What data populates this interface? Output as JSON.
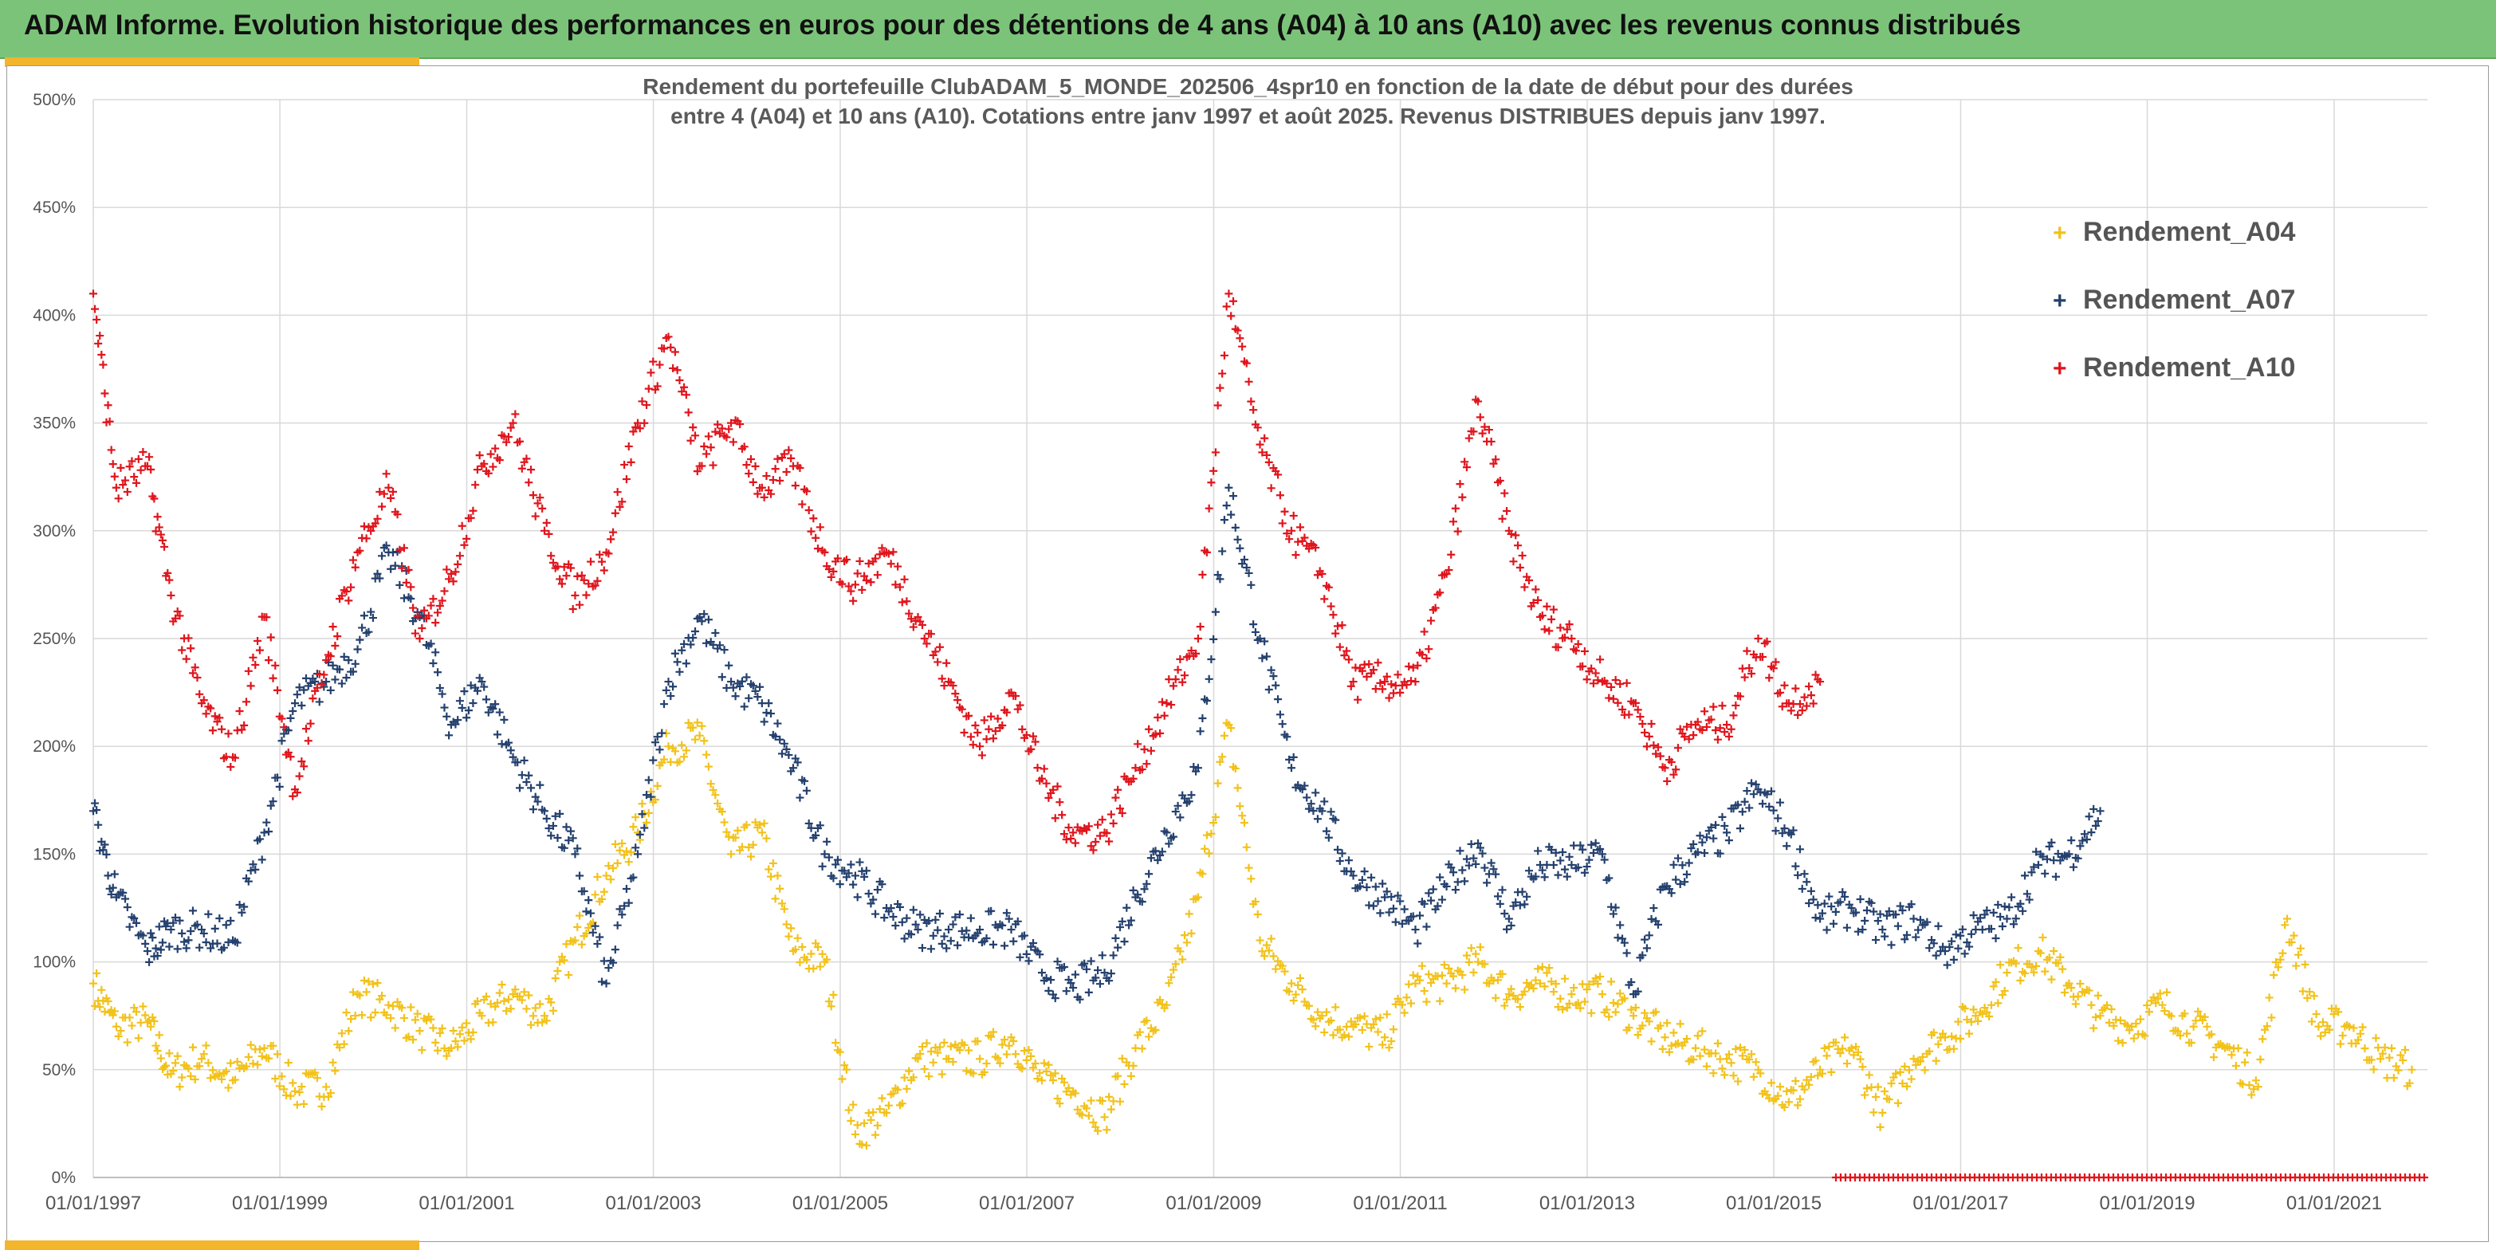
{
  "banner": {
    "title": "ADAM Informe. Evolution historique des performances en euros pour des détentions de 4 ans (A04) à 10 ans (A10) avec les revenus connus distribués"
  },
  "colors": {
    "banner": "#7cc37a",
    "accent": "#f2b52b",
    "A04": "#f2c21a",
    "A07": "#24406e",
    "A10": "#e0151c"
  },
  "chart_data": {
    "type": "scatter",
    "title": "Rendement du portefeuille ClubADAM_5_MONDE_202506_4spr10  en fonction de la date de début pour des durées",
    "title_line2": "entre 4 (A04) et 10 ans (A10). Cotations entre janv 1997 et août 2025. Revenus DISTRIBUES depuis janv 1997.",
    "marker": "+",
    "x_axis": {
      "type": "date",
      "min": "1997-01-01",
      "max": "2022-01-01",
      "tick_labels": [
        "01/01/1997",
        "01/01/1999",
        "01/01/2001",
        "01/01/2003",
        "01/01/2005",
        "01/01/2007",
        "01/01/2009",
        "01/01/2011",
        "01/01/2013",
        "01/01/2015",
        "01/01/2017",
        "01/01/2019",
        "01/01/2021"
      ]
    },
    "y_axis": {
      "min": 0,
      "max": 5,
      "format": "percent",
      "tick_labels": [
        "0%",
        "50%",
        "100%",
        "150%",
        "200%",
        "250%",
        "300%",
        "350%",
        "400%",
        "450%",
        "500%"
      ]
    },
    "grid": true,
    "legend_position": "top-right",
    "series": [
      {
        "name": "Rendement_A04",
        "color": "#f2c21a",
        "x": [
          "1997-01-01",
          "1997-04-01",
          "1997-08-01",
          "1997-11-01",
          "1998-03-01",
          "1998-07-01",
          "1998-11-01",
          "1999-03-01",
          "1999-07-01",
          "1999-11-01",
          "2000-03-01",
          "2000-07-01",
          "2000-11-01",
          "2001-03-01",
          "2001-07-01",
          "2001-11-01",
          "2002-03-01",
          "2002-07-01",
          "2002-11-01",
          "2003-03-01",
          "2003-07-01",
          "2003-11-01",
          "2004-03-01",
          "2004-07-01",
          "2004-11-01",
          "2005-03-01",
          "2005-07-01",
          "2005-11-01",
          "2006-03-01",
          "2006-07-01",
          "2006-11-01",
          "2007-03-01",
          "2007-07-01",
          "2007-11-01",
          "2008-03-01",
          "2008-07-01",
          "2008-11-01",
          "2009-03-01",
          "2009-07-01",
          "2009-11-01",
          "2010-03-01",
          "2010-07-01",
          "2010-11-01",
          "2011-03-01",
          "2011-07-01",
          "2011-11-01",
          "2012-03-01",
          "2012-07-01",
          "2012-11-01",
          "2013-03-01",
          "2013-07-01",
          "2013-11-01",
          "2014-03-01",
          "2014-07-01",
          "2014-11-01",
          "2015-03-01",
          "2015-07-01",
          "2015-11-01",
          "2016-03-01",
          "2016-07-01",
          "2016-11-01",
          "2017-03-01",
          "2017-07-01",
          "2017-11-01",
          "2018-03-01",
          "2018-07-01",
          "2018-11-01",
          "2019-03-01",
          "2019-07-01",
          "2019-11-01",
          "2020-03-01",
          "2020-07-01",
          "2020-11-01",
          "2021-03-01",
          "2021-07-01",
          "2021-11-01"
        ],
        "y": [
          0.9,
          0.7,
          0.72,
          0.48,
          0.55,
          0.45,
          0.6,
          0.4,
          0.42,
          0.85,
          0.8,
          0.68,
          0.6,
          0.75,
          0.85,
          0.75,
          1.1,
          1.4,
          1.6,
          2.0,
          2.05,
          1.5,
          1.6,
          1.05,
          1.0,
          0.2,
          0.3,
          0.55,
          0.55,
          0.55,
          0.65,
          0.45,
          0.4,
          0.28,
          0.6,
          0.8,
          1.3,
          2.1,
          1.1,
          0.9,
          0.75,
          0.7,
          0.65,
          0.9,
          0.9,
          1.0,
          0.85,
          0.9,
          0.85,
          0.85,
          0.75,
          0.65,
          0.6,
          0.55,
          0.5,
          0.35,
          0.5,
          0.6,
          0.3,
          0.55,
          0.65,
          0.75,
          0.95,
          1.05,
          0.9,
          0.75,
          0.7,
          0.8,
          0.7,
          0.6,
          0.45,
          1.2,
          0.7,
          0.7,
          0.55,
          0.5
        ]
      },
      {
        "name": "Rendement_A07",
        "color": "#24406e",
        "x": [
          "1997-01-01",
          "1997-04-01",
          "1997-08-01",
          "1997-11-01",
          "1998-03-01",
          "1998-07-01",
          "1998-11-01",
          "1999-03-01",
          "1999-07-01",
          "1999-11-01",
          "2000-03-01",
          "2000-07-01",
          "2000-11-01",
          "2001-03-01",
          "2001-07-01",
          "2001-11-01",
          "2002-03-01",
          "2002-07-01",
          "2002-11-01",
          "2003-03-01",
          "2003-07-01",
          "2003-11-01",
          "2004-03-01",
          "2004-07-01",
          "2004-11-01",
          "2005-03-01",
          "2005-07-01",
          "2005-11-01",
          "2006-03-01",
          "2006-07-01",
          "2006-11-01",
          "2007-03-01",
          "2007-07-01",
          "2007-11-01",
          "2008-03-01",
          "2008-07-01",
          "2008-11-01",
          "2009-03-01",
          "2009-07-01",
          "2009-11-01",
          "2010-03-01",
          "2010-07-01",
          "2010-11-01",
          "2011-03-01",
          "2011-07-01",
          "2011-11-01",
          "2012-03-01",
          "2012-07-01",
          "2012-11-01",
          "2013-03-01",
          "2013-07-01",
          "2013-11-01",
          "2014-03-01",
          "2014-07-01",
          "2014-11-01",
          "2015-03-01",
          "2015-07-01",
          "2015-11-01",
          "2016-03-01",
          "2016-07-01",
          "2016-11-01",
          "2017-03-01",
          "2017-07-01",
          "2017-11-01",
          "2018-03-01",
          "2018-07-01"
        ],
        "y": [
          1.7,
          1.3,
          1.05,
          1.15,
          1.15,
          1.1,
          1.6,
          2.2,
          2.3,
          2.45,
          2.9,
          2.6,
          2.1,
          2.3,
          1.95,
          1.7,
          1.5,
          0.9,
          1.5,
          2.3,
          2.6,
          2.3,
          2.2,
          1.9,
          1.5,
          1.4,
          1.25,
          1.15,
          1.15,
          1.15,
          1.15,
          0.95,
          0.88,
          0.95,
          1.3,
          1.6,
          1.9,
          3.2,
          2.5,
          1.9,
          1.7,
          1.4,
          1.3,
          1.15,
          1.35,
          1.55,
          1.2,
          1.45,
          1.45,
          1.5,
          0.85,
          1.35,
          1.5,
          1.6,
          1.8,
          1.6,
          1.2,
          1.25,
          1.15,
          1.2,
          1.05,
          1.15,
          1.2,
          1.45,
          1.5,
          1.7
        ]
      },
      {
        "name": "Rendement_A10",
        "color": "#e0151c",
        "x": [
          "1997-01-01",
          "1997-04-01",
          "1997-08-01",
          "1997-11-01",
          "1998-03-01",
          "1998-07-01",
          "1998-11-01",
          "1999-03-01",
          "1999-07-01",
          "1999-11-01",
          "2000-03-01",
          "2000-07-01",
          "2000-11-01",
          "2001-03-01",
          "2001-07-01",
          "2001-11-01",
          "2002-03-01",
          "2002-07-01",
          "2002-11-01",
          "2003-03-01",
          "2003-07-01",
          "2003-11-01",
          "2004-03-01",
          "2004-07-01",
          "2004-11-01",
          "2005-03-01",
          "2005-07-01",
          "2005-11-01",
          "2006-03-01",
          "2006-07-01",
          "2006-11-01",
          "2007-03-01",
          "2007-07-01",
          "2007-11-01",
          "2008-03-01",
          "2008-07-01",
          "2008-11-01",
          "2009-03-01",
          "2009-07-01",
          "2009-11-01",
          "2010-03-01",
          "2010-07-01",
          "2010-11-01",
          "2011-03-01",
          "2011-07-01",
          "2011-11-01",
          "2012-03-01",
          "2012-07-01",
          "2012-11-01",
          "2013-03-01",
          "2013-07-01",
          "2013-11-01",
          "2014-03-01",
          "2014-07-01",
          "2014-11-01",
          "2015-03-01",
          "2015-07-01"
        ],
        "y": [
          4.1,
          3.2,
          3.3,
          2.7,
          2.2,
          1.95,
          2.6,
          1.8,
          2.4,
          2.9,
          3.2,
          2.5,
          2.8,
          3.3,
          3.5,
          3.0,
          2.7,
          2.9,
          3.5,
          3.9,
          3.3,
          3.5,
          3.2,
          3.3,
          2.9,
          2.75,
          2.9,
          2.6,
          2.3,
          2.0,
          2.25,
          1.85,
          1.6,
          1.6,
          1.9,
          2.2,
          2.5,
          4.1,
          3.4,
          3.0,
          2.8,
          2.3,
          2.3,
          2.3,
          2.8,
          3.6,
          3.0,
          2.6,
          2.5,
          2.3,
          2.2,
          1.9,
          2.1,
          2.1,
          2.5,
          2.2,
          2.3
        ]
      },
      {
        "name": "",
        "color": "#e0151c",
        "x": [
          "2015-09-01",
          "2022-01-01"
        ],
        "y": [
          0,
          0
        ],
        "note_style": "dense-baseline"
      }
    ]
  }
}
